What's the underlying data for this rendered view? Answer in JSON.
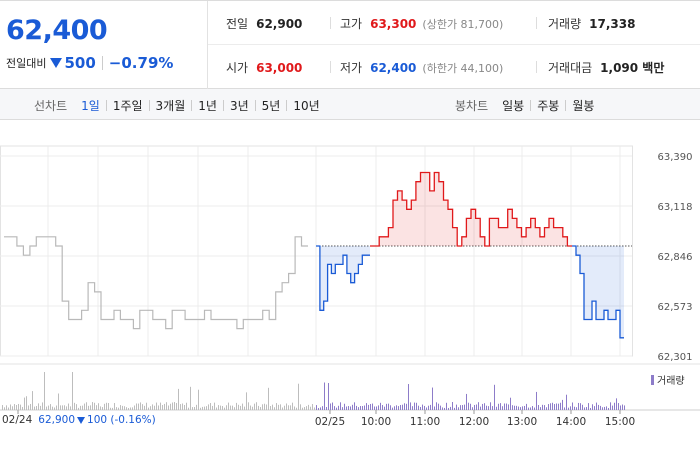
{
  "quote": {
    "price": "62,400",
    "change_label": "전일대비",
    "change_abs": "500",
    "change_pct": "−0.79%",
    "down_icon": "down-triangle-icon"
  },
  "stats": {
    "prev_close": {
      "label": "전일",
      "value": "62,900"
    },
    "high": {
      "label": "고가",
      "value": "63,300",
      "sub": "(상한가 81,700)"
    },
    "volume": {
      "label": "거래량",
      "value": "17,338"
    },
    "open": {
      "label": "시가",
      "value": "63,000"
    },
    "low": {
      "label": "저가",
      "value": "62,400",
      "sub": "(하한가 44,100)"
    },
    "turnover": {
      "label": "거래대금",
      "value": "1,090 백만"
    }
  },
  "toolbar": {
    "line_chart_title": "선차트",
    "line_periods": [
      "1일",
      "1주일",
      "3개월",
      "1년",
      "3년",
      "5년",
      "10년"
    ],
    "active_period": "1일",
    "candle_title": "봉차트",
    "candle_periods": [
      "일봉",
      "주봉",
      "월봉"
    ]
  },
  "chart_data": {
    "type": "line",
    "y_ticks": [
      "63,390",
      "63,118",
      "62,846",
      "62,573",
      "62,301"
    ],
    "ylim": [
      62301,
      63390
    ],
    "reference_price": 62900,
    "x_ticks": [
      "02/24",
      "02/25",
      "10:00",
      "11:00",
      "12:00",
      "13:00",
      "14:00",
      "15:00"
    ],
    "legend": "거래량",
    "prev_day_note": {
      "date": "02/24",
      "price": "62,900",
      "change": "100 (-0.16%)"
    },
    "colors": {
      "up": "#e0191b",
      "down": "#1a5bd6",
      "prev_day": "#b9b9b9",
      "volume": "#8d7cc9"
    },
    "prev_day_series": [
      62950,
      62950,
      62900,
      62850,
      62900,
      62950,
      62950,
      62950,
      62900,
      62600,
      62500,
      62500,
      62550,
      62700,
      62650,
      62500,
      62500,
      62550,
      62500,
      62500,
      62450,
      62550,
      62550,
      62500,
      62500,
      62450,
      62550,
      62550,
      62500,
      62500,
      62500,
      62550,
      62500,
      62500,
      62500,
      62500,
      62450,
      62500,
      62500,
      62500,
      62550,
      62500,
      62650,
      62700,
      62750,
      62950,
      62900
    ],
    "today_up_series": [
      62900,
      62900,
      62950,
      62950,
      63000,
      63150,
      63200,
      63150,
      63100,
      63150,
      63250,
      63300,
      63300,
      63200,
      63300,
      63250,
      63150,
      63100,
      63000,
      62900,
      62950,
      63050,
      63100,
      63050,
      62950,
      62900,
      63050,
      63050,
      63000,
      63000,
      63100,
      63050,
      63000,
      62950,
      63000,
      63050,
      63000,
      62950,
      63000,
      63050,
      63000,
      63000,
      62950,
      62900
    ],
    "today_down_series": [
      62900,
      62550,
      62600,
      62800,
      62750,
      62800,
      62800,
      62850,
      62750,
      62700,
      62750,
      62800,
      62850,
      62850
    ],
    "today_down_tail": [
      62900,
      62850,
      62750,
      62500,
      62500,
      62600,
      62500,
      62500,
      62550,
      62500,
      62500,
      62550,
      62400
    ]
  }
}
